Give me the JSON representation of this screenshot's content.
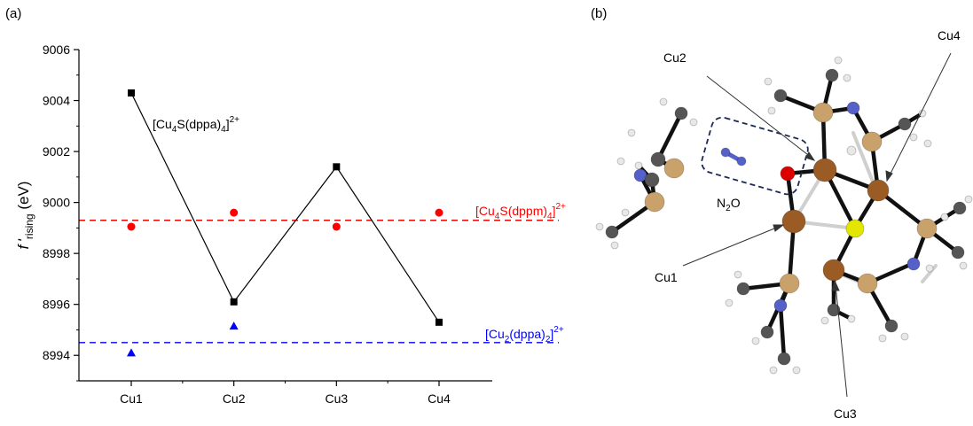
{
  "panel_labels": {
    "a": "(a)",
    "b": "(b)"
  },
  "chart_data": {
    "type": "line",
    "categories": [
      "Cu1",
      "Cu2",
      "Cu3",
      "Cu4"
    ],
    "ylabel": {
      "main": "f '",
      "sub": "rising",
      "unit": " (eV)"
    },
    "ylim": [
      8993,
      9006
    ],
    "yticks": [
      8994,
      8996,
      8998,
      9000,
      9002,
      9004,
      9006
    ],
    "grid": false,
    "series": [
      {
        "name": "[Cu4S(dppa)4]2+",
        "marker": "square",
        "color": "#000000",
        "connected": true,
        "values": [
          9004.3,
          8996.1,
          9001.4,
          8995.3
        ]
      },
      {
        "name": "[Cu4S(dppm)4]2+",
        "marker": "circle",
        "color": "#ff0000",
        "connected": false,
        "values": [
          8999.05,
          8999.6,
          8999.05,
          8999.6
        ]
      },
      {
        "name": "[Cu2(dppa)2]2+",
        "marker": "triangle",
        "color": "#0000ff",
        "connected": false,
        "values": [
          8994.1,
          8995.15,
          null,
          null
        ]
      }
    ],
    "reference_lines": [
      {
        "value": 8999.3,
        "color": "#ff0000",
        "style": "dashed"
      },
      {
        "value": 8994.5,
        "color": "#0000ff",
        "style": "dashed"
      }
    ],
    "annotations": [
      {
        "text": "[Cu4S(dppa)4]2+",
        "main": "[Cu",
        "sub1": "4",
        "mid": "S(dppa)",
        "sub2": "4",
        "close": "]",
        "sup": "2+",
        "color": "#000000"
      },
      {
        "text": "[Cu4S(dppm)4]2+",
        "main": "[Cu",
        "sub1": "4",
        "mid": "S(dppm)",
        "sub2": "4",
        "close": "]",
        "sup": "2+",
        "color": "#ff0000"
      },
      {
        "text": "[Cu2(dppa)2]2+",
        "main": "[Cu",
        "sub1": "2",
        "mid": "(dppa)",
        "sub2": "2",
        "close": "]",
        "sup": "2+",
        "color": "#0000ff"
      }
    ]
  },
  "molecule_panel": {
    "labels": {
      "cu1": "Cu1",
      "cu2": "Cu2",
      "cu3": "Cu3",
      "cu4": "Cu4",
      "n2o_main": "N",
      "n2o_sub": "2",
      "n2o_end": "O"
    },
    "colors": {
      "cu": "#9a5b24",
      "p": "#c9a26b",
      "s": "#e3e600",
      "o": "#dd0000",
      "n": "#5560c8",
      "c": "#555555",
      "h": "#e8e8e8",
      "bond": "#111111"
    }
  }
}
